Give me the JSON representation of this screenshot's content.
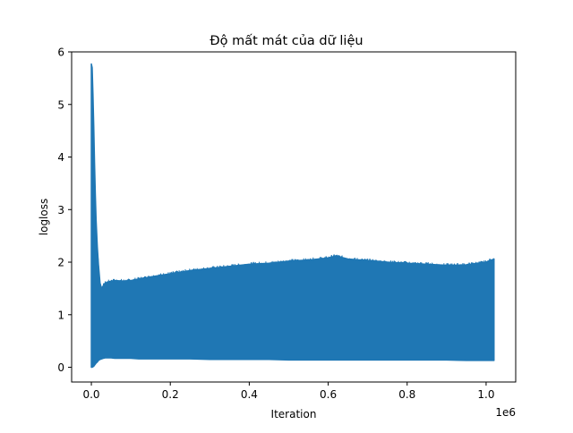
{
  "chart_data": {
    "type": "line",
    "title": "Độ mất mát của dữ liệu",
    "xlabel": "Iteration",
    "ylabel": "logloss",
    "x_offset_label": "1e6",
    "xlim": [
      -0.05,
      1.075
    ],
    "ylim": [
      -0.28,
      6.0
    ],
    "x_ticks": [
      0.0,
      0.2,
      0.4,
      0.6,
      0.8,
      1.0
    ],
    "x_tick_labels": [
      "0.0",
      "0.2",
      "0.4",
      "0.6",
      "0.8",
      "1.0"
    ],
    "y_ticks": [
      0,
      1,
      2,
      3,
      4,
      5,
      6
    ],
    "y_tick_labels": [
      "0",
      "1",
      "2",
      "3",
      "4",
      "5",
      "6"
    ],
    "grid": false,
    "series": [
      {
        "color": "#1f77b4",
        "x": [
          0.0,
          0.002,
          0.004,
          0.006,
          0.008,
          0.01,
          0.012,
          0.015,
          0.018,
          0.022,
          0.026,
          0.03,
          0.035,
          0.04,
          0.05,
          0.06,
          0.08,
          0.1,
          0.12,
          0.15,
          0.2,
          0.25,
          0.3,
          0.35,
          0.4,
          0.45,
          0.5,
          0.55,
          0.6,
          0.62,
          0.65,
          0.7,
          0.75,
          0.8,
          0.85,
          0.9,
          0.95,
          1.0,
          1.02
        ],
        "upper": [
          5.77,
          5.7,
          5.2,
          4.6,
          3.9,
          3.3,
          2.8,
          2.3,
          1.95,
          1.6,
          1.5,
          1.55,
          1.6,
          1.62,
          1.64,
          1.65,
          1.64,
          1.65,
          1.68,
          1.72,
          1.78,
          1.84,
          1.88,
          1.92,
          1.96,
          1.98,
          2.02,
          2.04,
          2.08,
          2.12,
          2.06,
          2.03,
          2.0,
          1.98,
          1.96,
          1.94,
          1.95,
          2.0,
          2.06
        ],
        "lower": [
          0.0,
          0.0,
          0.01,
          0.02,
          0.04,
          0.06,
          0.08,
          0.1,
          0.13,
          0.15,
          0.16,
          0.17,
          0.18,
          0.18,
          0.18,
          0.17,
          0.17,
          0.17,
          0.16,
          0.16,
          0.16,
          0.16,
          0.15,
          0.15,
          0.15,
          0.15,
          0.14,
          0.14,
          0.14,
          0.14,
          0.14,
          0.14,
          0.14,
          0.14,
          0.14,
          0.14,
          0.13,
          0.13,
          0.13
        ]
      }
    ]
  }
}
